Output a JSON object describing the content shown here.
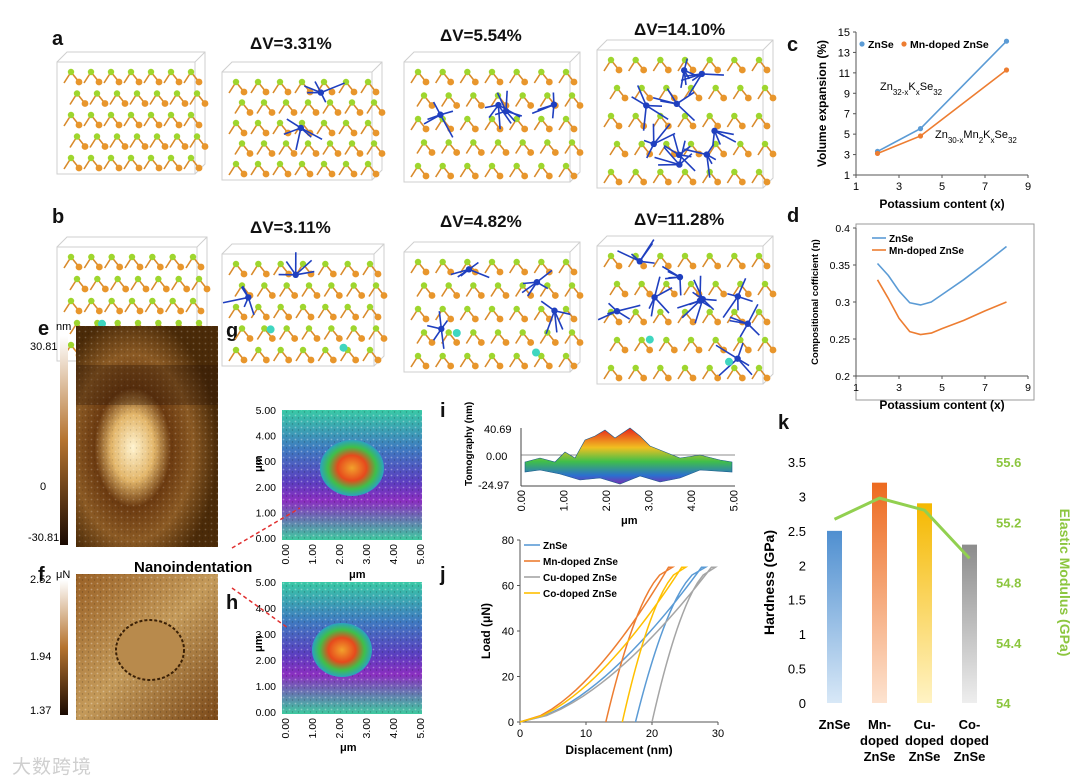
{
  "panel_labels": {
    "a": "a",
    "b": "b",
    "c": "c",
    "d": "d",
    "e": "e",
    "f": "f",
    "g": "g",
    "h": "h",
    "i": "i",
    "j": "j",
    "k": "k"
  },
  "row_a_volume_changes": [
    "ΔV=3.31%",
    "ΔV=5.54%",
    "ΔV=14.10%"
  ],
  "row_b_volume_changes": [
    "ΔV=3.11%",
    "ΔV=4.82%",
    "ΔV=11.28%"
  ],
  "afm": {
    "e_unit": "nm",
    "e_scale": [
      "30.81",
      "0",
      "-30.81"
    ],
    "f_unit": "μN",
    "f_scale": [
      "2.52",
      "1.94",
      "1.37"
    ],
    "nanoindentation_label": "Nanoindentation",
    "g_y_ticks": [
      "5.00",
      "4.00",
      "3.00",
      "2.00",
      "1.00",
      "0.00"
    ],
    "g_x_ticks": [
      "0.00",
      "1.00",
      "2.00",
      "3.00",
      "4.00",
      "5.00"
    ],
    "g_ylabel": "μm",
    "g_xlabel": "μm",
    "h_y_ticks": [
      "5.00",
      "4.00",
      "3.00",
      "2.00",
      "1.00",
      "0.00"
    ],
    "h_x_ticks": [
      "0.00",
      "1.00",
      "2.00",
      "3.00",
      "4.00",
      "5.00"
    ],
    "h_ylabel": "μm",
    "h_xlabel": "μm"
  },
  "tomography": {
    "ylabel": "Tomography (nm)",
    "y_ticks": [
      "40.69",
      "0.00",
      "-24.97"
    ],
    "x_ticks": [
      "0.00",
      "1.00",
      "2.00",
      "3.00",
      "4.00",
      "5.00"
    ],
    "xlabel": "μm"
  },
  "watermark": "大数跨境",
  "colors": {
    "blue": "#5b9bd5",
    "orange": "#ed7d31",
    "gray": "#a5a5a5",
    "yellow": "#ffc000",
    "green": "#92d050",
    "dark_blue": "#1f3fbf",
    "zn_atom": "#e8962c",
    "se_atom": "#9ed62e"
  },
  "chart_data": [
    {
      "id": "c",
      "type": "line",
      "title": "",
      "xlabel": "Potassium content (x)",
      "ylabel": "Volume expansion (%)",
      "xlim": [
        1,
        9
      ],
      "ylim": [
        1,
        15
      ],
      "x_ticks": [
        1,
        3,
        5,
        7,
        9
      ],
      "y_ticks": [
        1,
        3,
        5,
        7,
        9,
        11,
        13,
        15
      ],
      "series": [
        {
          "name": "ZnSe",
          "color": "#5b9bd5",
          "x": [
            2,
            4,
            8
          ],
          "y": [
            3.31,
            5.54,
            14.1
          ]
        },
        {
          "name": "Mn-doped ZnSe",
          "color": "#ed7d31",
          "x": [
            2,
            4,
            8
          ],
          "y": [
            3.11,
            4.82,
            11.28
          ]
        }
      ],
      "annotations": [
        {
          "text": "Zn32-xKxSe32",
          "base": "Zn",
          "sub1": "32-x",
          "mid": "K",
          "sub2": "x",
          "mid2": "Se",
          "sub3": "32"
        },
        {
          "text": "Zn30-xMn2KxSe32",
          "base": "Zn",
          "sub1": "30-x",
          "mid": "Mn",
          "sub2": "2",
          "mid2": "K",
          "sub3": "x",
          "mid3": "Se",
          "sub4": "32"
        }
      ]
    },
    {
      "id": "d",
      "type": "line",
      "title": "",
      "xlabel": "Potassium content (x)",
      "ylabel": "Compositional cofficient (η)",
      "xlim": [
        1,
        9
      ],
      "ylim": [
        0.2,
        0.4
      ],
      "x_ticks": [
        1,
        3,
        5,
        7,
        9
      ],
      "y_ticks": [
        0.2,
        0.25,
        0.3,
        0.35,
        0.4
      ],
      "series": [
        {
          "name": "ZnSe",
          "color": "#5b9bd5",
          "x": [
            2,
            2.5,
            3,
            3.5,
            4,
            4.5,
            5,
            6,
            7,
            8
          ],
          "y": [
            0.352,
            0.336,
            0.315,
            0.299,
            0.296,
            0.3,
            0.31,
            0.33,
            0.352,
            0.375
          ]
        },
        {
          "name": "Mn-doped ZnSe",
          "color": "#ed7d31",
          "x": [
            2,
            2.5,
            3,
            3.5,
            4,
            4.5,
            5,
            6,
            7,
            8
          ],
          "y": [
            0.33,
            0.305,
            0.278,
            0.26,
            0.256,
            0.258,
            0.264,
            0.275,
            0.288,
            0.3
          ]
        }
      ]
    },
    {
      "id": "j",
      "type": "line",
      "title": "",
      "xlabel": "Displacement (nm)",
      "ylabel": "Load (μN)",
      "xlim": [
        0,
        30
      ],
      "ylim": [
        0,
        80
      ],
      "x_ticks": [
        0,
        10,
        20,
        30
      ],
      "y_ticks": [
        0,
        20,
        40,
        60,
        80
      ],
      "series": [
        {
          "name": "ZnSe",
          "color": "#5b9bd5",
          "load_max": 68,
          "x_max": 27.5,
          "x_final": 17.5
        },
        {
          "name": "Mn-doped ZnSe",
          "color": "#ed7d31",
          "load_max": 68,
          "x_max": 22.5,
          "x_final": 13.0
        },
        {
          "name": "Cu-doped ZnSe",
          "color": "#a5a5a5",
          "load_max": 68,
          "x_max": 29.0,
          "x_final": 20.0
        },
        {
          "name": "Co-doped ZnSe",
          "color": "#ffc000",
          "load_max": 68,
          "x_max": 24.5,
          "x_final": 15.5
        }
      ]
    },
    {
      "id": "k",
      "type": "bar",
      "title": "",
      "categories": [
        "ZnSe",
        "Mn-doped ZnSe",
        "Cu-doped ZnSe",
        "Co-doped ZnSe"
      ],
      "category_lines": [
        [
          "ZnSe"
        ],
        [
          "Mn-",
          "doped",
          "ZnSe"
        ],
        [
          "Cu-",
          "doped",
          "ZnSe"
        ],
        [
          "Co-",
          "doped",
          "ZnSe"
        ]
      ],
      "values": [
        2.5,
        3.2,
        2.9,
        2.3
      ],
      "bar_colors": [
        "#5b9bd5",
        "#ed7d31",
        "#ffc000",
        "#a5a5a5"
      ],
      "ylabel": "Hardness (GPa)",
      "ylim": [
        0,
        3.5
      ],
      "y_ticks": [
        "0",
        "0.5",
        "1",
        "1.5",
        "2",
        "2.5",
        "3",
        "3.5"
      ],
      "secondary": {
        "name": "Elastic Modulus (GPa)",
        "color": "#92d050",
        "values": [
          55.22,
          55.36,
          55.28,
          54.96
        ],
        "ylim": [
          54,
          55.6
        ],
        "y_ticks": [
          "54",
          "54.4",
          "54.8",
          "55.2",
          "55.6"
        ]
      }
    }
  ]
}
